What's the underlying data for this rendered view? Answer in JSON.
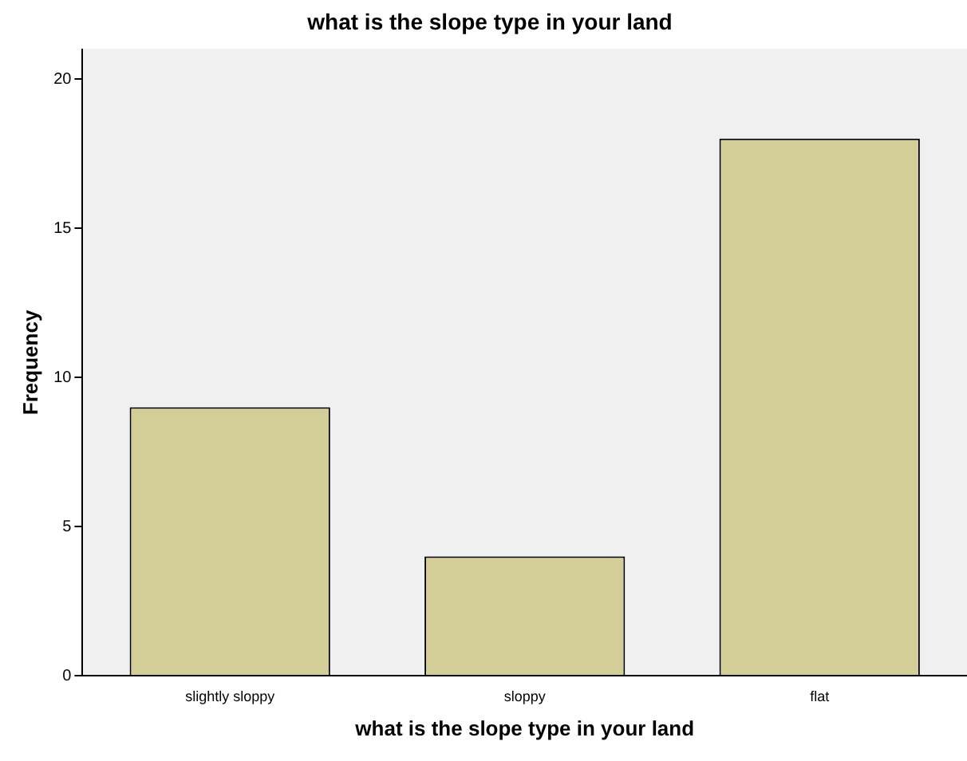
{
  "chart_data": {
    "type": "bar",
    "title": "what is the slope type in your land",
    "xlabel": "what is the slope type in your land",
    "ylabel": "Frequency",
    "categories": [
      "slightly sloppy",
      "sloppy",
      "flat"
    ],
    "values": [
      9,
      4,
      18
    ],
    "color": "#d3ce97",
    "ylim": [
      0,
      21
    ],
    "yticks": [
      0,
      5,
      10,
      15,
      20
    ],
    "grid": false,
    "legend": false
  }
}
